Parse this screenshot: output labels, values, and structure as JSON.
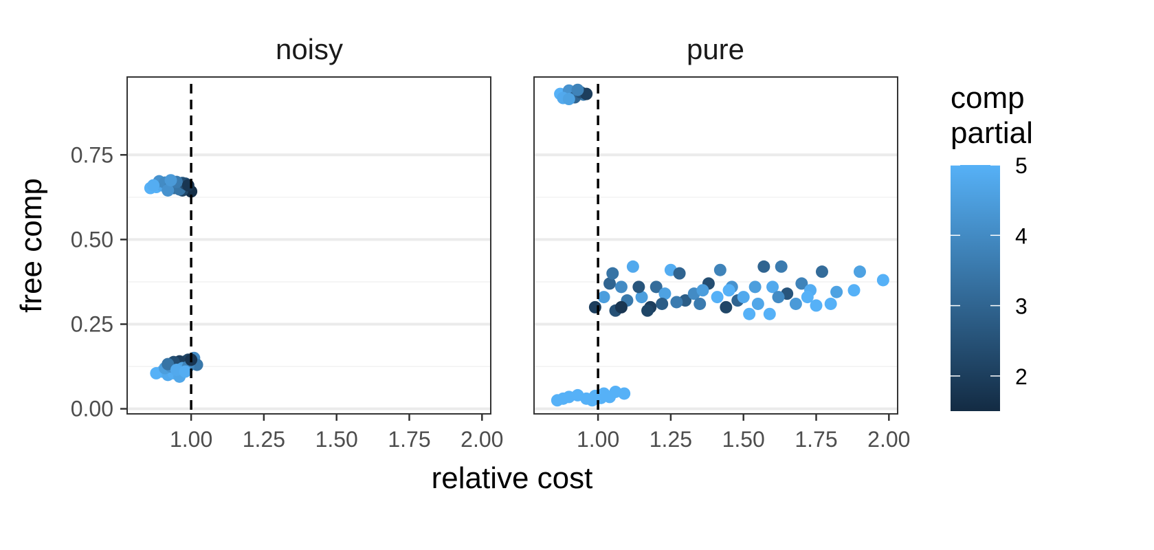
{
  "chart_data": {
    "type": "scatter",
    "facets": [
      "noisy",
      "pure"
    ],
    "xlabel": "relative cost",
    "ylabel": "free comp",
    "xlim": [
      0.78,
      2.03
    ],
    "ylim": [
      -0.015,
      0.98
    ],
    "x_ticks": [
      1.0,
      1.25,
      1.5,
      1.75,
      2.0
    ],
    "x_tick_labels": [
      "1.00",
      "1.25",
      "1.50",
      "1.75",
      "2.00"
    ],
    "y_ticks": [
      0.0,
      0.25,
      0.5,
      0.75
    ],
    "y_tick_labels": [
      "0.00",
      "0.25",
      "0.50",
      "0.75"
    ],
    "reference_line": {
      "x": 1.0,
      "style": "dashed",
      "color": "#000000"
    },
    "grid": "horizontal major and minor gridlines",
    "legend": {
      "title_lines": [
        "comp",
        "partial"
      ],
      "type": "colorbar",
      "placement": "right",
      "range": [
        1.5,
        5.0
      ],
      "ticks": [
        2,
        3,
        4,
        5
      ],
      "tick_labels": [
        "2",
        "3",
        "4",
        "5"
      ],
      "color_low": "#132B43",
      "color_high": "#56B1F7"
    },
    "points": {
      "noisy": [
        [
          0.86,
          0.652,
          5
        ],
        [
          0.88,
          0.655,
          5
        ],
        [
          0.9,
          0.66,
          4.8
        ],
        [
          0.92,
          0.665,
          4.5
        ],
        [
          0.89,
          0.672,
          4.2
        ],
        [
          0.91,
          0.668,
          4
        ],
        [
          0.93,
          0.66,
          3.8
        ],
        [
          0.95,
          0.655,
          3.5
        ],
        [
          0.96,
          0.662,
          3
        ],
        [
          0.97,
          0.667,
          2.8
        ],
        [
          0.98,
          0.658,
          2.5
        ],
        [
          0.99,
          0.648,
          2
        ],
        [
          1.0,
          0.642,
          1.6
        ],
        [
          0.97,
          0.645,
          2.2
        ],
        [
          0.94,
          0.652,
          3.2
        ],
        [
          0.96,
          0.648,
          3.4
        ],
        [
          0.98,
          0.665,
          2.4
        ],
        [
          0.92,
          0.645,
          4.2
        ],
        [
          0.95,
          0.67,
          3.6
        ],
        [
          0.99,
          0.66,
          1.8
        ],
        [
          0.87,
          0.66,
          4.9
        ],
        [
          0.93,
          0.675,
          4.4
        ],
        [
          0.88,
          0.105,
          5
        ],
        [
          0.9,
          0.11,
          5
        ],
        [
          0.92,
          0.1,
          4.8
        ],
        [
          0.94,
          0.105,
          4.9
        ],
        [
          0.96,
          0.095,
          4.7
        ],
        [
          0.91,
          0.12,
          4.5
        ],
        [
          0.93,
          0.125,
          4.2
        ],
        [
          0.95,
          0.13,
          3.8
        ],
        [
          0.97,
          0.135,
          3.2
        ],
        [
          0.98,
          0.14,
          2.6
        ],
        [
          0.99,
          0.145,
          2.2
        ],
        [
          1.0,
          0.135,
          2.8
        ],
        [
          1.01,
          0.15,
          4
        ],
        [
          1.02,
          0.13,
          3.5
        ],
        [
          0.96,
          0.14,
          2
        ],
        [
          0.94,
          0.138,
          2.4
        ],
        [
          0.97,
          0.12,
          4.6
        ],
        [
          0.99,
          0.125,
          3.8
        ],
        [
          1.0,
          0.145,
          1.8
        ],
        [
          0.92,
          0.132,
          3.4
        ],
        [
          0.95,
          0.115,
          4.8
        ],
        [
          0.98,
          0.11,
          4.9
        ]
      ],
      "pure": [
        [
          0.87,
          0.93,
          5
        ],
        [
          0.89,
          0.925,
          5
        ],
        [
          0.91,
          0.935,
          4.5
        ],
        [
          0.93,
          0.93,
          4
        ],
        [
          0.95,
          0.928,
          3.5
        ],
        [
          0.9,
          0.94,
          4.2
        ],
        [
          0.92,
          0.92,
          3
        ],
        [
          0.94,
          0.935,
          2.5
        ],
        [
          0.96,
          0.93,
          2
        ],
        [
          0.88,
          0.918,
          4.8
        ],
        [
          0.9,
          0.915,
          4.6
        ],
        [
          0.93,
          0.942,
          3.8
        ],
        [
          0.86,
          0.025,
          5
        ],
        [
          0.88,
          0.03,
          5
        ],
        [
          0.9,
          0.035,
          5
        ],
        [
          0.93,
          0.04,
          5
        ],
        [
          0.96,
          0.03,
          5
        ],
        [
          0.99,
          0.038,
          5
        ],
        [
          1.02,
          0.045,
          5
        ],
        [
          1.04,
          0.035,
          5
        ],
        [
          1.06,
          0.05,
          5
        ],
        [
          1.09,
          0.045,
          5
        ],
        [
          0.98,
          0.025,
          5
        ],
        [
          1.01,
          0.032,
          5
        ],
        [
          0.99,
          0.3,
          2
        ],
        [
          1.02,
          0.33,
          4.5
        ],
        [
          1.04,
          0.37,
          3
        ],
        [
          1.06,
          0.29,
          2.5
        ],
        [
          1.08,
          0.36,
          4
        ],
        [
          1.1,
          0.32,
          3.5
        ],
        [
          1.12,
          0.42,
          4.8
        ],
        [
          1.15,
          0.33,
          4.5
        ],
        [
          1.18,
          0.3,
          2
        ],
        [
          1.2,
          0.36,
          3.2
        ],
        [
          1.23,
          0.34,
          4.6
        ],
        [
          1.25,
          0.41,
          4.9
        ],
        [
          1.28,
          0.4,
          3
        ],
        [
          1.3,
          0.32,
          2.8
        ],
        [
          1.33,
          0.34,
          4
        ],
        [
          1.35,
          0.31,
          3.6
        ],
        [
          1.38,
          0.37,
          2.4
        ],
        [
          1.41,
          0.33,
          5
        ],
        [
          1.42,
          0.41,
          3.8
        ],
        [
          1.44,
          0.3,
          2.2
        ],
        [
          1.46,
          0.36,
          4.2
        ],
        [
          1.48,
          0.32,
          3
        ],
        [
          1.52,
          0.28,
          5
        ],
        [
          1.54,
          0.36,
          4.5
        ],
        [
          1.57,
          0.42,
          3
        ],
        [
          1.59,
          0.28,
          5
        ],
        [
          1.6,
          0.36,
          4.8
        ],
        [
          1.63,
          0.42,
          3.6
        ],
        [
          1.65,
          0.34,
          2.6
        ],
        [
          1.68,
          0.31,
          4.4
        ],
        [
          1.7,
          0.37,
          3.8
        ],
        [
          1.73,
          0.35,
          4.9
        ],
        [
          1.75,
          0.305,
          5
        ],
        [
          1.77,
          0.405,
          3.2
        ],
        [
          1.8,
          0.31,
          5
        ],
        [
          1.82,
          0.345,
          4.6
        ],
        [
          1.88,
          0.35,
          5
        ],
        [
          1.9,
          0.405,
          4.6
        ],
        [
          1.98,
          0.38,
          5
        ],
        [
          1.05,
          0.4,
          3.4
        ],
        [
          1.14,
          0.36,
          2.6
        ],
        [
          1.22,
          0.31,
          2.8
        ],
        [
          1.36,
          0.35,
          4.5
        ],
        [
          1.5,
          0.33,
          4.8
        ],
        [
          1.62,
          0.33,
          4
        ],
        [
          1.72,
          0.33,
          5
        ],
        [
          1.08,
          0.3,
          1.8
        ],
        [
          1.17,
          0.29,
          2.2
        ],
        [
          1.27,
          0.315,
          3.6
        ],
        [
          1.45,
          0.35,
          5
        ],
        [
          1.55,
          0.31,
          4.7
        ]
      ]
    }
  }
}
